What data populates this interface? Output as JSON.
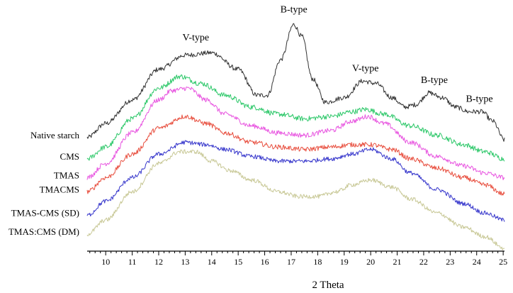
{
  "chart_data": {
    "type": "line",
    "title": "",
    "xlabel": "2 Theta",
    "ylabel": "",
    "xlim": [
      9.3,
      25.05
    ],
    "ylim": [
      0,
      100
    ],
    "grid": false,
    "x_ticks": [
      "10",
      "11",
      "12",
      "13",
      "14",
      "15",
      "16",
      "17",
      "18",
      "19",
      "20",
      "21",
      "22",
      "23",
      "24",
      "25"
    ],
    "series": [
      {
        "name": "Native starch",
        "color": "#333333",
        "points": [
          [
            9.3,
            47
          ],
          [
            10,
            53
          ],
          [
            11,
            63
          ],
          [
            12,
            76
          ],
          [
            13,
            82
          ],
          [
            14,
            83
          ],
          [
            15,
            76
          ],
          [
            15.7,
            65
          ],
          [
            16.1,
            65
          ],
          [
            16.6,
            80
          ],
          [
            17.1,
            95
          ],
          [
            17.4,
            90
          ],
          [
            17.8,
            72
          ],
          [
            18.3,
            62
          ],
          [
            19,
            64
          ],
          [
            19.7,
            71
          ],
          [
            20.2,
            70
          ],
          [
            20.8,
            64
          ],
          [
            21.3,
            60
          ],
          [
            21.7,
            61
          ],
          [
            22.2,
            66
          ],
          [
            22.7,
            64
          ],
          [
            23.2,
            60
          ],
          [
            23.7,
            58
          ],
          [
            24.2,
            58
          ],
          [
            24.6,
            54
          ],
          [
            25.05,
            46
          ]
        ],
        "noise": 1.0
      },
      {
        "name": "CMS",
        "color": "#2ec86a",
        "points": [
          [
            9.3,
            38
          ],
          [
            10,
            43
          ],
          [
            11,
            55
          ],
          [
            12,
            68
          ],
          [
            12.8,
            73
          ],
          [
            13.6,
            70
          ],
          [
            14.5,
            65
          ],
          [
            15.5,
            60
          ],
          [
            16.5,
            57
          ],
          [
            17.5,
            55
          ],
          [
            18.5,
            56
          ],
          [
            19.3,
            58
          ],
          [
            19.8,
            59
          ],
          [
            20.5,
            57
          ],
          [
            21.5,
            52
          ],
          [
            22.5,
            48
          ],
          [
            23.5,
            44
          ],
          [
            24.3,
            41
          ],
          [
            25.05,
            38
          ]
        ],
        "noise": 1.1
      },
      {
        "name": "TMAS",
        "color": "#e855e0",
        "points": [
          [
            9.3,
            30
          ],
          [
            10,
            36
          ],
          [
            11,
            49
          ],
          [
            12,
            63
          ],
          [
            12.5,
            67
          ],
          [
            13.1,
            68
          ],
          [
            13.8,
            63
          ],
          [
            14.5,
            57
          ],
          [
            15.5,
            52
          ],
          [
            16.5,
            49
          ],
          [
            17.5,
            48
          ],
          [
            18.5,
            50
          ],
          [
            19.3,
            54
          ],
          [
            19.9,
            56
          ],
          [
            20.5,
            53
          ],
          [
            21.5,
            45
          ],
          [
            22.5,
            39
          ],
          [
            23.5,
            35
          ],
          [
            24.3,
            32
          ],
          [
            25.05,
            30
          ]
        ],
        "noise": 1.0
      },
      {
        "name": "TMACMS",
        "color": "#e85040",
        "points": [
          [
            9.3,
            24
          ],
          [
            10,
            30
          ],
          [
            11,
            40
          ],
          [
            12,
            51
          ],
          [
            13,
            56
          ],
          [
            13.8,
            53
          ],
          [
            14.5,
            49
          ],
          [
            15.5,
            45
          ],
          [
            16.5,
            43
          ],
          [
            17.5,
            42
          ],
          [
            18.5,
            43
          ],
          [
            19.3,
            44
          ],
          [
            20,
            44
          ],
          [
            20.8,
            42
          ],
          [
            21.5,
            38
          ],
          [
            22.5,
            34
          ],
          [
            23.5,
            30
          ],
          [
            24.3,
            27
          ],
          [
            25.05,
            23
          ]
        ],
        "noise": 1.0
      },
      {
        "name": "TMAS-CMS (SD)",
        "color": "#3838cc",
        "points": [
          [
            9.3,
            14
          ],
          [
            10,
            20
          ],
          [
            11,
            30
          ],
          [
            12,
            40
          ],
          [
            13,
            45
          ],
          [
            13.8,
            44
          ],
          [
            14.5,
            42
          ],
          [
            15.5,
            39
          ],
          [
            16.5,
            37
          ],
          [
            17.5,
            37
          ],
          [
            18.5,
            38
          ],
          [
            19.3,
            40
          ],
          [
            20,
            42
          ],
          [
            20.8,
            38
          ],
          [
            21.5,
            32
          ],
          [
            22.5,
            25
          ],
          [
            23.5,
            19
          ],
          [
            24.3,
            15
          ],
          [
            25.05,
            12
          ]
        ],
        "noise": 0.9
      },
      {
        "name": "TMAS:CMS (DM)",
        "color": "#c8c896",
        "points": [
          [
            9.3,
            6
          ],
          [
            10,
            12
          ],
          [
            11,
            24
          ],
          [
            12,
            36
          ],
          [
            12.8,
            41
          ],
          [
            13.4,
            41
          ],
          [
            14,
            37
          ],
          [
            14.7,
            33
          ],
          [
            15.5,
            29
          ],
          [
            16.5,
            24
          ],
          [
            17.3,
            22
          ],
          [
            18,
            22
          ],
          [
            18.7,
            24
          ],
          [
            19.3,
            27
          ],
          [
            20,
            29
          ],
          [
            20.8,
            26
          ],
          [
            21.5,
            21
          ],
          [
            22.5,
            15
          ],
          [
            23.5,
            9
          ],
          [
            24.3,
            5
          ],
          [
            25.05,
            0
          ]
        ],
        "noise": 0.9
      }
    ],
    "annotations": [
      {
        "text": "V-type",
        "x": 13.4,
        "y": 87
      },
      {
        "text": "B-type",
        "x": 17.1,
        "y": 99
      },
      {
        "text": "V-type",
        "x": 19.8,
        "y": 74
      },
      {
        "text": "B-type",
        "x": 22.4,
        "y": 69
      },
      {
        "text": "B-type",
        "x": 24.1,
        "y": 61
      }
    ]
  }
}
